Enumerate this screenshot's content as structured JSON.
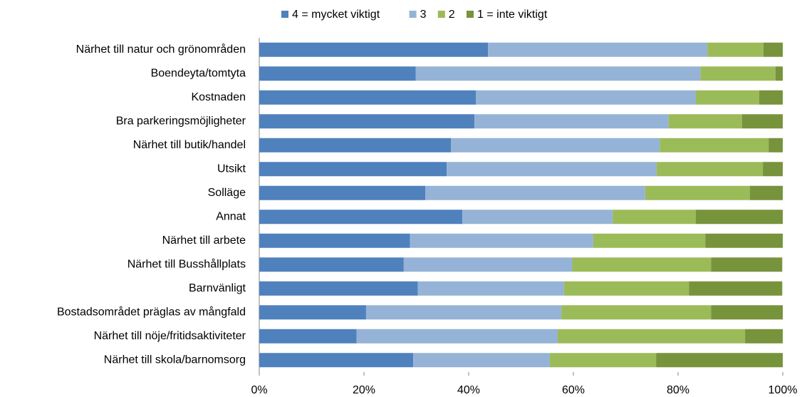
{
  "chart_data": {
    "type": "stacked_barh",
    "categories": [
      "Närhet till natur och grönområden",
      "Boendeyta/tomtyta",
      "Kostnaden",
      "Bra parkeringsmöjligheter",
      "Närhet till butik/handel",
      "Utsikt",
      "Solläge",
      "Annat",
      "Närhet till arbete",
      "Närhet till Busshållplats",
      "Barnvänligt",
      "Bostadsområdet präglas av mångfald",
      "Närhet till nöje/fritidsaktiviteter",
      "Närhet till skola/barnomsorg"
    ],
    "series": [
      {
        "name": "4 = mycket viktigt",
        "color": "#4f81bd",
        "values": [
          43.7,
          29.9,
          41.4,
          41.1,
          36.6,
          35.8,
          31.7,
          38.8,
          28.8,
          27.6,
          30.3,
          20.4,
          18.6,
          29.4
        ]
      },
      {
        "name": "3",
        "color": "#95b3d7",
        "values": [
          41.9,
          54.4,
          42.0,
          37.1,
          39.9,
          40.1,
          42.0,
          28.7,
          35.0,
          32.2,
          27.9,
          37.3,
          38.4,
          26.1
        ]
      },
      {
        "name": "2",
        "color": "#9bbb59",
        "values": [
          10.7,
          14.3,
          12.1,
          14.0,
          20.8,
          20.3,
          20.0,
          15.9,
          21.4,
          26.5,
          23.9,
          28.6,
          35.8,
          20.3
        ]
      },
      {
        "name": "1 = inte viktigt",
        "color": "#77933c",
        "values": [
          3.7,
          1.4,
          4.5,
          7.8,
          2.7,
          3.8,
          6.3,
          16.6,
          14.8,
          13.6,
          17.8,
          13.7,
          7.2,
          24.2
        ]
      }
    ],
    "xlim": [
      0,
      100
    ],
    "xticks": [
      {
        "value": 0,
        "label": "0%"
      },
      {
        "value": 20,
        "label": "20%"
      },
      {
        "value": 40,
        "label": "40%"
      },
      {
        "value": 60,
        "label": "60%"
      },
      {
        "value": 80,
        "label": "80%"
      },
      {
        "value": 100,
        "label": "100%"
      }
    ],
    "legend": "top"
  }
}
